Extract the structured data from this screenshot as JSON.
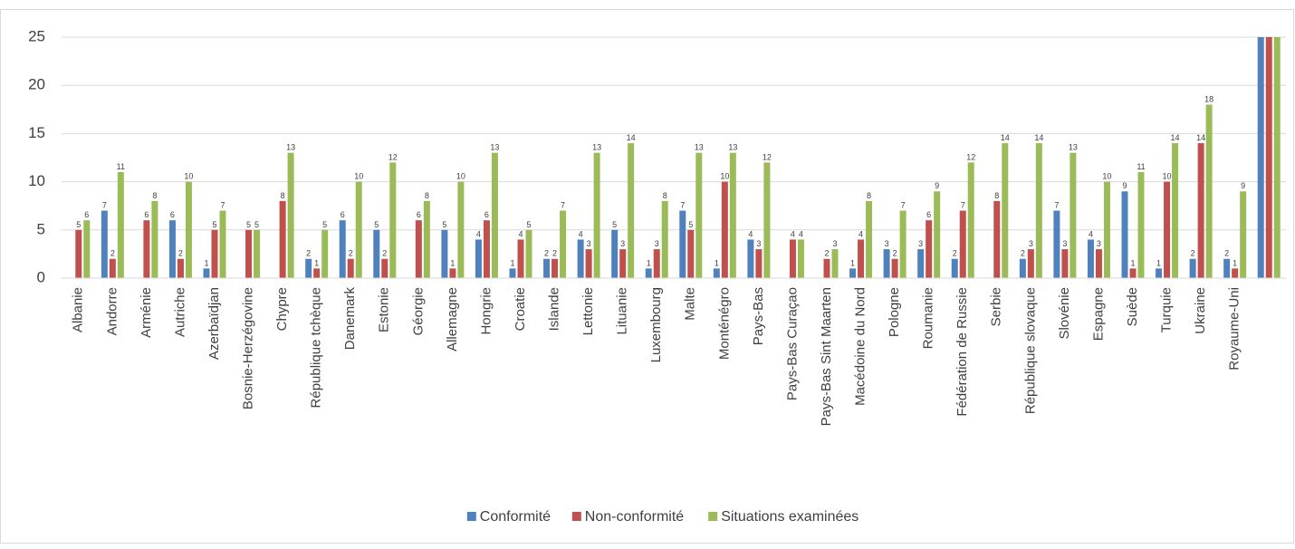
{
  "chart_data": {
    "type": "bar",
    "categories": [
      "Albanie",
      "Andorre",
      "Arménie",
      "Autriche",
      "Azerbaïdjan",
      "Bosnie-Herzégovine",
      "Chypre",
      "République tchèque",
      "Danemark",
      "Estonie",
      "Géorgie",
      "Allemagne",
      "Hongrie",
      "Croatie",
      "Islande",
      "Lettonie",
      "Lituanie",
      "Luxembourg",
      "Malte",
      "Monténégro",
      "Pays-Bas",
      "Pays-Bas Curaçao",
      "Pays-Bas Sint Maarten",
      "Macédoine du Nord",
      "Pologne",
      "Roumanie",
      "Fédération de Russie",
      "Serbie",
      "République slovaque",
      "Slovénie",
      "Espagne",
      "Suède",
      "Turquie",
      "Ukraine",
      "Royaume-Uni",
      null
    ],
    "series": [
      {
        "name": "Conformité",
        "color": "#4f81bd",
        "values": [
          null,
          7,
          null,
          6,
          1,
          null,
          null,
          2,
          6,
          5,
          null,
          5,
          4,
          1,
          2,
          4,
          5,
          1,
          7,
          1,
          4,
          null,
          null,
          1,
          3,
          3,
          2,
          null,
          2,
          7,
          4,
          9,
          1,
          2,
          2,
          25
        ]
      },
      {
        "name": "Non-conformité",
        "color": "#c0504d",
        "values": [
          5,
          2,
          6,
          2,
          5,
          5,
          8,
          1,
          2,
          2,
          6,
          1,
          6,
          4,
          2,
          3,
          3,
          3,
          5,
          10,
          3,
          4,
          2,
          4,
          2,
          6,
          7,
          8,
          3,
          3,
          3,
          1,
          10,
          14,
          1,
          25
        ]
      },
      {
        "name": "Situations examinées",
        "color": "#9bbb59",
        "values": [
          6,
          11,
          8,
          10,
          7,
          5,
          13,
          5,
          10,
          12,
          8,
          10,
          13,
          5,
          7,
          13,
          14,
          8,
          13,
          13,
          12,
          4,
          3,
          8,
          7,
          9,
          12,
          14,
          14,
          13,
          10,
          11,
          14,
          18,
          9,
          25
        ]
      }
    ],
    "ylim": [
      0,
      25
    ],
    "yticks": [
      0,
      5,
      10,
      15,
      20,
      25
    ],
    "grid": true,
    "legend": "bottom"
  }
}
